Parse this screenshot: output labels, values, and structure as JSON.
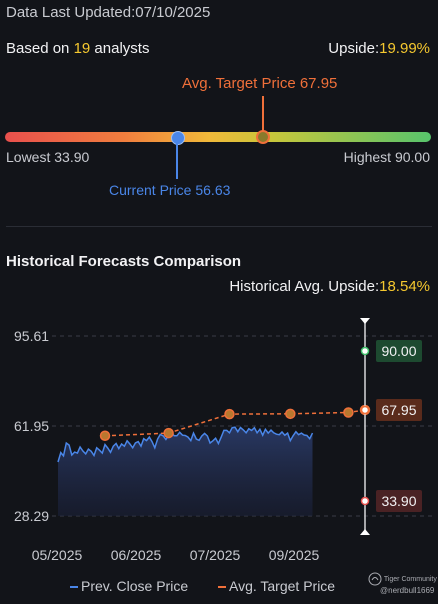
{
  "header": {
    "updated_label": "Data Last Updated:",
    "updated_date": "07/10/2025",
    "based_prefix": "Based on ",
    "analyst_count": "19",
    "based_suffix": " analysts",
    "upside_label": "Upside:",
    "upside_value": "19.99%"
  },
  "gauge": {
    "avg_target_label": "Avg. Target Price 67.95",
    "current_label": "Current Price 56.63",
    "lowest_label": "Lowest 33.90",
    "highest_label": "Highest 90.00",
    "low": 33.9,
    "high": 90.0,
    "current": 56.63,
    "avg_target": 67.95,
    "colors": {
      "low": "#e9504d",
      "mid": "#f0b93a",
      "high": "#57c46c",
      "current": "#4a86e8",
      "target": "#f0703a"
    }
  },
  "history": {
    "title": "Historical Forecasts Comparison",
    "upside_label": "Historical Avg. Upside:",
    "upside_value": "18.54%"
  },
  "chart_data": {
    "type": "line",
    "y_ticks": [
      "95.61",
      "61.95",
      "28.29"
    ],
    "x_ticks": [
      "05/2025",
      "06/2025",
      "07/2025",
      "09/2025"
    ],
    "ylim": [
      28.29,
      95.61
    ],
    "series": [
      {
        "name": "Prev. Close Price",
        "color": "#4a86e8",
        "values": [
          48.5,
          52,
          50.8,
          55.6,
          54.8,
          51.1,
          52.2,
          51.8,
          54.1,
          52.6,
          51.5,
          53.3,
          52.5,
          50.9,
          53.8,
          52.9,
          51.8,
          55,
          53.7,
          52.1,
          54.4,
          55.4,
          53.5,
          55.2,
          54.4,
          56.4,
          55.2,
          53.8,
          55.6,
          56.1,
          54.4,
          57.2,
          56.5,
          57.8,
          56.1,
          53.8,
          57.1,
          58.8,
          58.3,
          56.9,
          58.4,
          59.5,
          58.3,
          58.3,
          59.6,
          58.5,
          58.4,
          57.8,
          56.5,
          59.3,
          57.1,
          56.6,
          58.2,
          59.2,
          58.2,
          55.6,
          56.4,
          57.4,
          55.4,
          57.8,
          60.3,
          60.3,
          59.4,
          61.3,
          61.5,
          59.8,
          61.4,
          60.5,
          59.4,
          60.9,
          60.3,
          61.3,
          59.4,
          60.7,
          58.5,
          60.7,
          59.3,
          60.4,
          59.4,
          58.9,
          58.7,
          59.7,
          58.5,
          59.3,
          56.5,
          58.3,
          59.8,
          58.7,
          59.3,
          58.6,
          58.4,
          57.2,
          59.3
        ]
      },
      {
        "name": "Avg. Target Price",
        "color": "#f0703a",
        "points": [
          {
            "i": 17,
            "v": 58.3
          },
          {
            "i": 40,
            "v": 59.3
          },
          {
            "i": 62,
            "v": 66.4
          },
          {
            "i": 84,
            "v": 66.5
          },
          {
            "i": 105,
            "v": 67.0
          },
          {
            "i": 111,
            "v": 67.95
          }
        ]
      }
    ],
    "high_marker": {
      "value": 90.0,
      "label": "90.00",
      "color": "#3fbf6a"
    },
    "target_marker": {
      "value": 67.95,
      "label": "67.95",
      "color": "#f0703a"
    },
    "low_marker": {
      "value": 33.9,
      "label": "33.90",
      "color": "#e9504d"
    },
    "grid": true
  },
  "legend": {
    "close_label": "Prev. Close Price",
    "target_label": "Avg. Target Price"
  },
  "logo": {
    "brand": "Tiger Community",
    "handle": "@nerdbull1669"
  }
}
